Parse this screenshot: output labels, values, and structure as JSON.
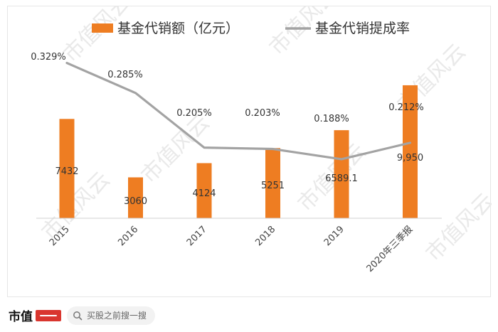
{
  "chart_data": {
    "type": "bar",
    "categories": [
      "2015",
      "2016",
      "2017",
      "2018",
      "2019",
      "2020年三季报"
    ],
    "series": [
      {
        "name": "基金代销额（亿元）",
        "type": "bar",
        "values": [
          7432,
          3060,
          4124,
          5251,
          6589.1,
          9950
        ],
        "labels": [
          "7432",
          "3060",
          "4124",
          "5251",
          "6589.1",
          "9,950"
        ],
        "color": "#ee7d22"
      },
      {
        "name": "基金代销提成率",
        "type": "line",
        "values": [
          0.329,
          0.285,
          0.205,
          0.203,
          0.188,
          0.212
        ],
        "labels": [
          "0.329%",
          "0.285%",
          "0.205%",
          "0.203%",
          "0.188%",
          "0.212%"
        ],
        "color": "#a3a3a3"
      }
    ],
    "title": "",
    "xlabel": "",
    "ylabel": "",
    "legend_position": "top",
    "grid": false
  },
  "watermark": {
    "text": "市值风云"
  },
  "footer": {
    "brand": "市值",
    "search_text": "买股之前搜一搜"
  }
}
